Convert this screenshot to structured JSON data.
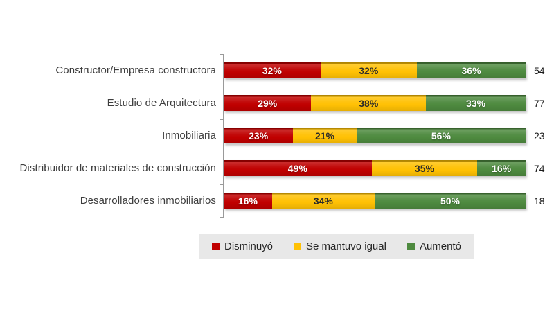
{
  "chart_data": {
    "type": "bar",
    "subtype": "stacked-horizontal",
    "title": "",
    "categories": [
      "Constructor/Empresa constructora",
      "Estudio de Arquitectura",
      "Inmobiliaria",
      "Distribuidor de materiales de construcción",
      "Desarrolladores inmobiliarios"
    ],
    "series": [
      {
        "name": "Disminuyó",
        "color": "#C00000",
        "values": [
          32,
          29,
          23,
          49,
          16
        ]
      },
      {
        "name": "Se mantuvo igual",
        "color": "#FFC104",
        "values": [
          32,
          38,
          21,
          35,
          34
        ]
      },
      {
        "name": "Aumentó",
        "color": "#4E8A3F",
        "values": [
          36,
          33,
          56,
          16,
          50
        ]
      }
    ],
    "right_values": [
      54,
      77,
      23,
      74,
      18
    ],
    "value_suffix": "%",
    "xlim": [
      0,
      100
    ],
    "grid": false,
    "legend_position": "bottom",
    "legend_background": "#E8E8E8",
    "axis_color": "#9A9A9A"
  }
}
